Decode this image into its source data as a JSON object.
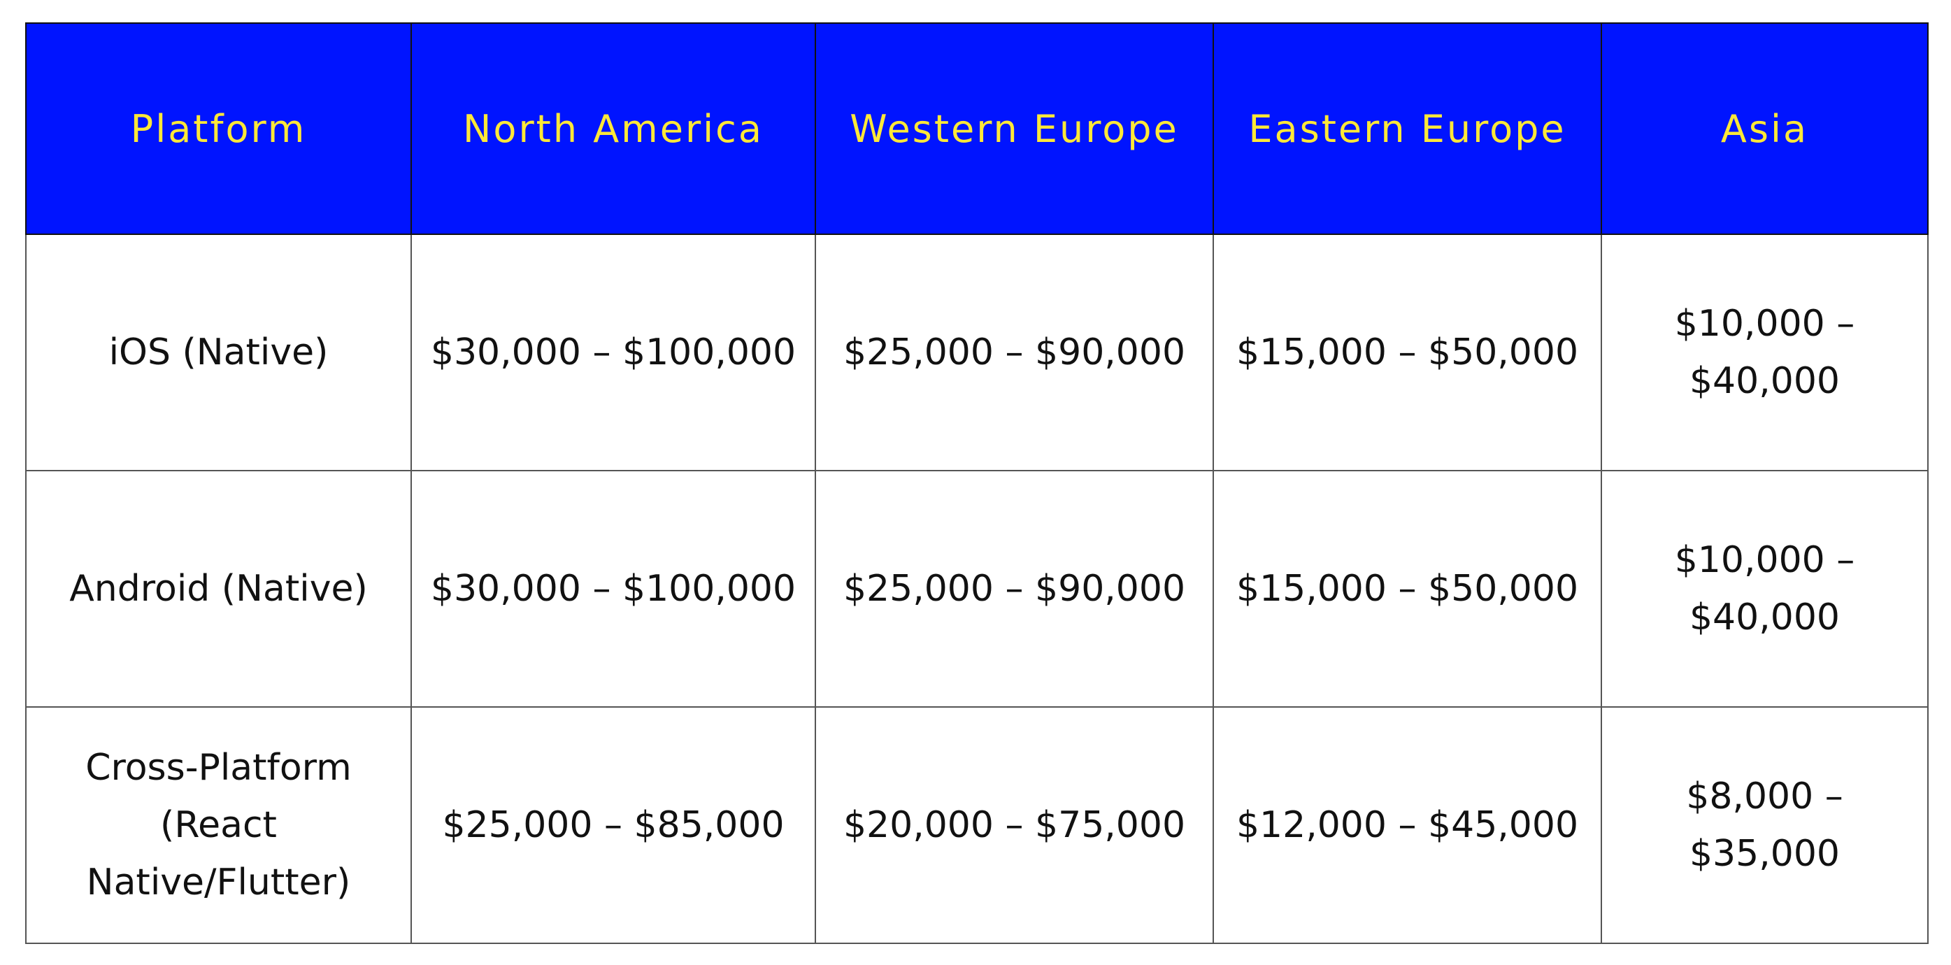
{
  "colors": {
    "header_bg": "#0014ff",
    "header_text": "#ffe838",
    "body_text": "#111111"
  },
  "table": {
    "headers": [
      "Platform",
      "North America",
      "Western Europe",
      "Eastern Europe",
      "Asia"
    ],
    "rows": [
      [
        "iOS (Native)",
        "$30,000 – $100,000",
        "$25,000 – $90,000",
        "$15,000 – $50,000",
        "$10,000 – $40,000"
      ],
      [
        "Android (Native)",
        "$30,000 – $100,000",
        "$25,000 – $90,000",
        "$15,000 – $50,000",
        "$10,000 – $40,000"
      ],
      [
        "Cross-Platform (React Native/Flutter)",
        "$25,000 – $85,000",
        "$20,000 – $75,000",
        "$12,000 – $45,000",
        "$8,000 – $35,000"
      ]
    ]
  }
}
